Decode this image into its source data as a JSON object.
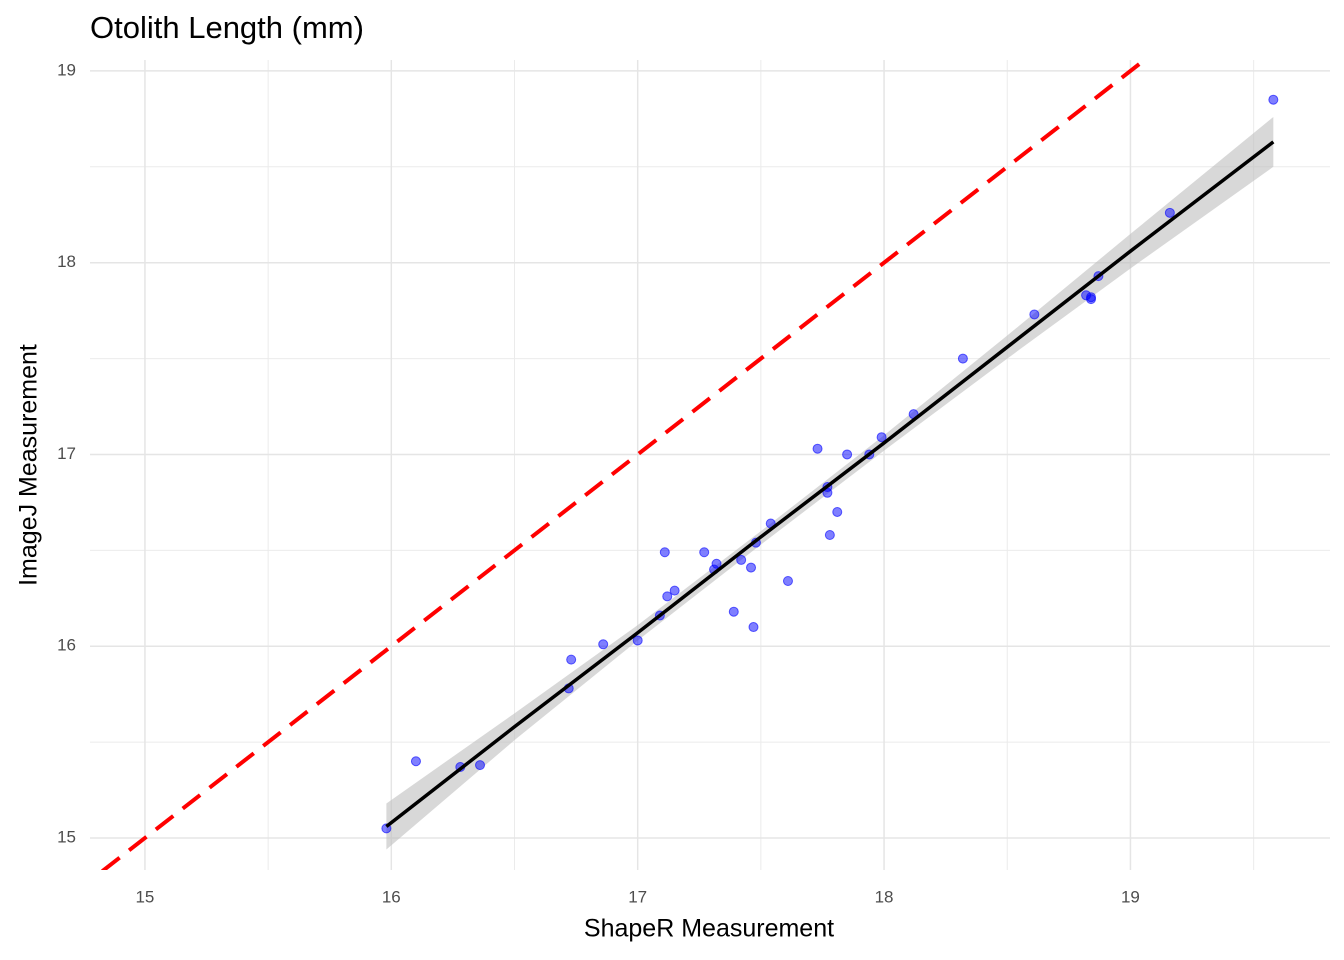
{
  "chart_data": {
    "type": "scatter",
    "title": "Otolith Length (mm)",
    "x_label": "ShapeR Measurement",
    "y_label": "ImageJ Measurement",
    "xlim": [
      14.777,
      19.81
    ],
    "ylim": [
      14.833,
      19.057
    ],
    "xticks": [
      15,
      16,
      17,
      18,
      19
    ],
    "yticks": [
      15,
      16,
      17,
      18,
      19
    ],
    "x_minor_grid": [
      15.5,
      16.5,
      17.5,
      18.5,
      19.5
    ],
    "y_minor_grid": [
      15.5,
      16.5,
      17.5,
      18.5
    ],
    "grid": true,
    "series": [
      {
        "color": "#0000ff",
        "x": [
          15.98,
          16.1,
          16.28,
          16.36,
          16.72,
          16.73,
          16.86,
          17.0,
          17.09,
          17.11,
          17.12,
          17.15,
          17.27,
          17.31,
          17.32,
          17.39,
          17.42,
          17.46,
          17.47,
          17.48,
          17.54,
          17.61,
          17.73,
          17.77,
          17.77,
          17.78,
          17.81,
          17.85,
          17.94,
          17.99,
          18.12,
          18.32,
          18.61,
          18.82,
          18.84,
          18.84,
          18.87,
          19.16,
          19.58
        ],
        "values": [
          15.05,
          15.4,
          15.37,
          15.38,
          15.78,
          15.93,
          16.01,
          16.03,
          16.16,
          16.49,
          16.26,
          16.29,
          16.49,
          16.4,
          16.43,
          16.18,
          16.45,
          16.41,
          16.1,
          16.54,
          16.64,
          16.34,
          17.03,
          16.8,
          16.83,
          16.58,
          16.7,
          17.0,
          17.0,
          17.09,
          17.21,
          17.5,
          17.73,
          17.83,
          17.82,
          17.81,
          17.93,
          18.26,
          18.85
        ]
      }
    ],
    "fit": {
      "color": "#000000",
      "band_color": "#bebebe",
      "x": [
        15.98,
        16.5,
        17,
        17.5,
        18,
        18.5,
        19,
        19.58
      ],
      "values": [
        15.06,
        15.58,
        16.07,
        16.57,
        17.06,
        17.56,
        18.06,
        18.63
      ],
      "lower": [
        14.94,
        15.51,
        16.03,
        16.53,
        17.02,
        17.5,
        17.97,
        18.5
      ],
      "upper": [
        15.18,
        15.65,
        16.11,
        16.6,
        17.1,
        17.62,
        18.15,
        18.76
      ]
    },
    "reference_line": {
      "color": "#ff0000",
      "x": [
        14.5,
        19.5
      ],
      "values": [
        14.5,
        19.5
      ]
    }
  }
}
